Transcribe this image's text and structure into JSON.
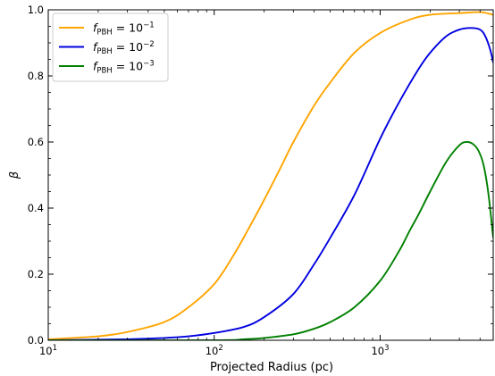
{
  "chart_data": {
    "type": "line",
    "title": "",
    "xlabel": "Projected Radius (pc)",
    "ylabel": "β",
    "xscale": "log",
    "xlim": [
      10,
      4800
    ],
    "ylim": [
      0,
      1.0
    ],
    "x_ticks": [
      {
        "value": 10,
        "base": "10",
        "exp": "1"
      },
      {
        "value": 100,
        "base": "10",
        "exp": "2"
      },
      {
        "value": 1000,
        "base": "10",
        "exp": "3"
      }
    ],
    "y_ticks": [
      {
        "value": 0.0,
        "label": "0.0"
      },
      {
        "value": 0.2,
        "label": "0.2"
      },
      {
        "value": 0.4,
        "label": "0.4"
      },
      {
        "value": 0.6,
        "label": "0.6"
      },
      {
        "value": 0.8,
        "label": "0.8"
      },
      {
        "value": 1.0,
        "label": "1.0"
      }
    ],
    "legend_position": "top-left",
    "grid": false,
    "series": [
      {
        "name": "f_PBH = 10^-1",
        "legend_base": "f",
        "legend_sub": "PBH",
        "legend_eq": " = 10",
        "legend_exp": "−1",
        "color": "#FFA500",
        "x": [
          10,
          20,
          30,
          50,
          70,
          100,
          130,
          160,
          200,
          250,
          300,
          400,
          500,
          700,
          1000,
          1500,
          2000,
          3000,
          4000,
          4800
        ],
        "y": [
          0.003,
          0.012,
          0.025,
          0.055,
          0.1,
          0.17,
          0.255,
          0.335,
          0.425,
          0.52,
          0.6,
          0.71,
          0.78,
          0.87,
          0.93,
          0.97,
          0.985,
          0.99,
          0.993,
          0.985
        ]
      },
      {
        "name": "f_PBH = 10^-2",
        "legend_base": "f",
        "legend_sub": "PBH",
        "legend_eq": " = 10",
        "legend_exp": "−2",
        "color": "#0000E0",
        "x": [
          10,
          30,
          50,
          70,
          100,
          150,
          200,
          300,
          400,
          500,
          700,
          1000,
          1300,
          1700,
          2000,
          2500,
          3000,
          3500,
          4000,
          4300,
          4600,
          4800
        ],
        "y": [
          0.0,
          0.003,
          0.007,
          0.012,
          0.022,
          0.04,
          0.07,
          0.14,
          0.23,
          0.31,
          0.44,
          0.61,
          0.72,
          0.82,
          0.87,
          0.92,
          0.94,
          0.945,
          0.94,
          0.92,
          0.88,
          0.84
        ]
      },
      {
        "name": "f_PBH = 10^-3",
        "legend_base": "f",
        "legend_sub": "PBH",
        "legend_eq": " = 10",
        "legend_exp": "−3",
        "color": "#008000",
        "x": [
          10,
          100,
          150,
          200,
          300,
          400,
          500,
          700,
          1000,
          1300,
          1500,
          1700,
          2000,
          2500,
          3000,
          3300,
          3600,
          3900,
          4200,
          4500,
          4800
        ],
        "y": [
          0.0,
          0.0,
          0.003,
          0.007,
          0.018,
          0.035,
          0.055,
          0.1,
          0.18,
          0.27,
          0.33,
          0.38,
          0.45,
          0.54,
          0.59,
          0.6,
          0.595,
          0.575,
          0.53,
          0.44,
          0.31
        ]
      }
    ]
  }
}
